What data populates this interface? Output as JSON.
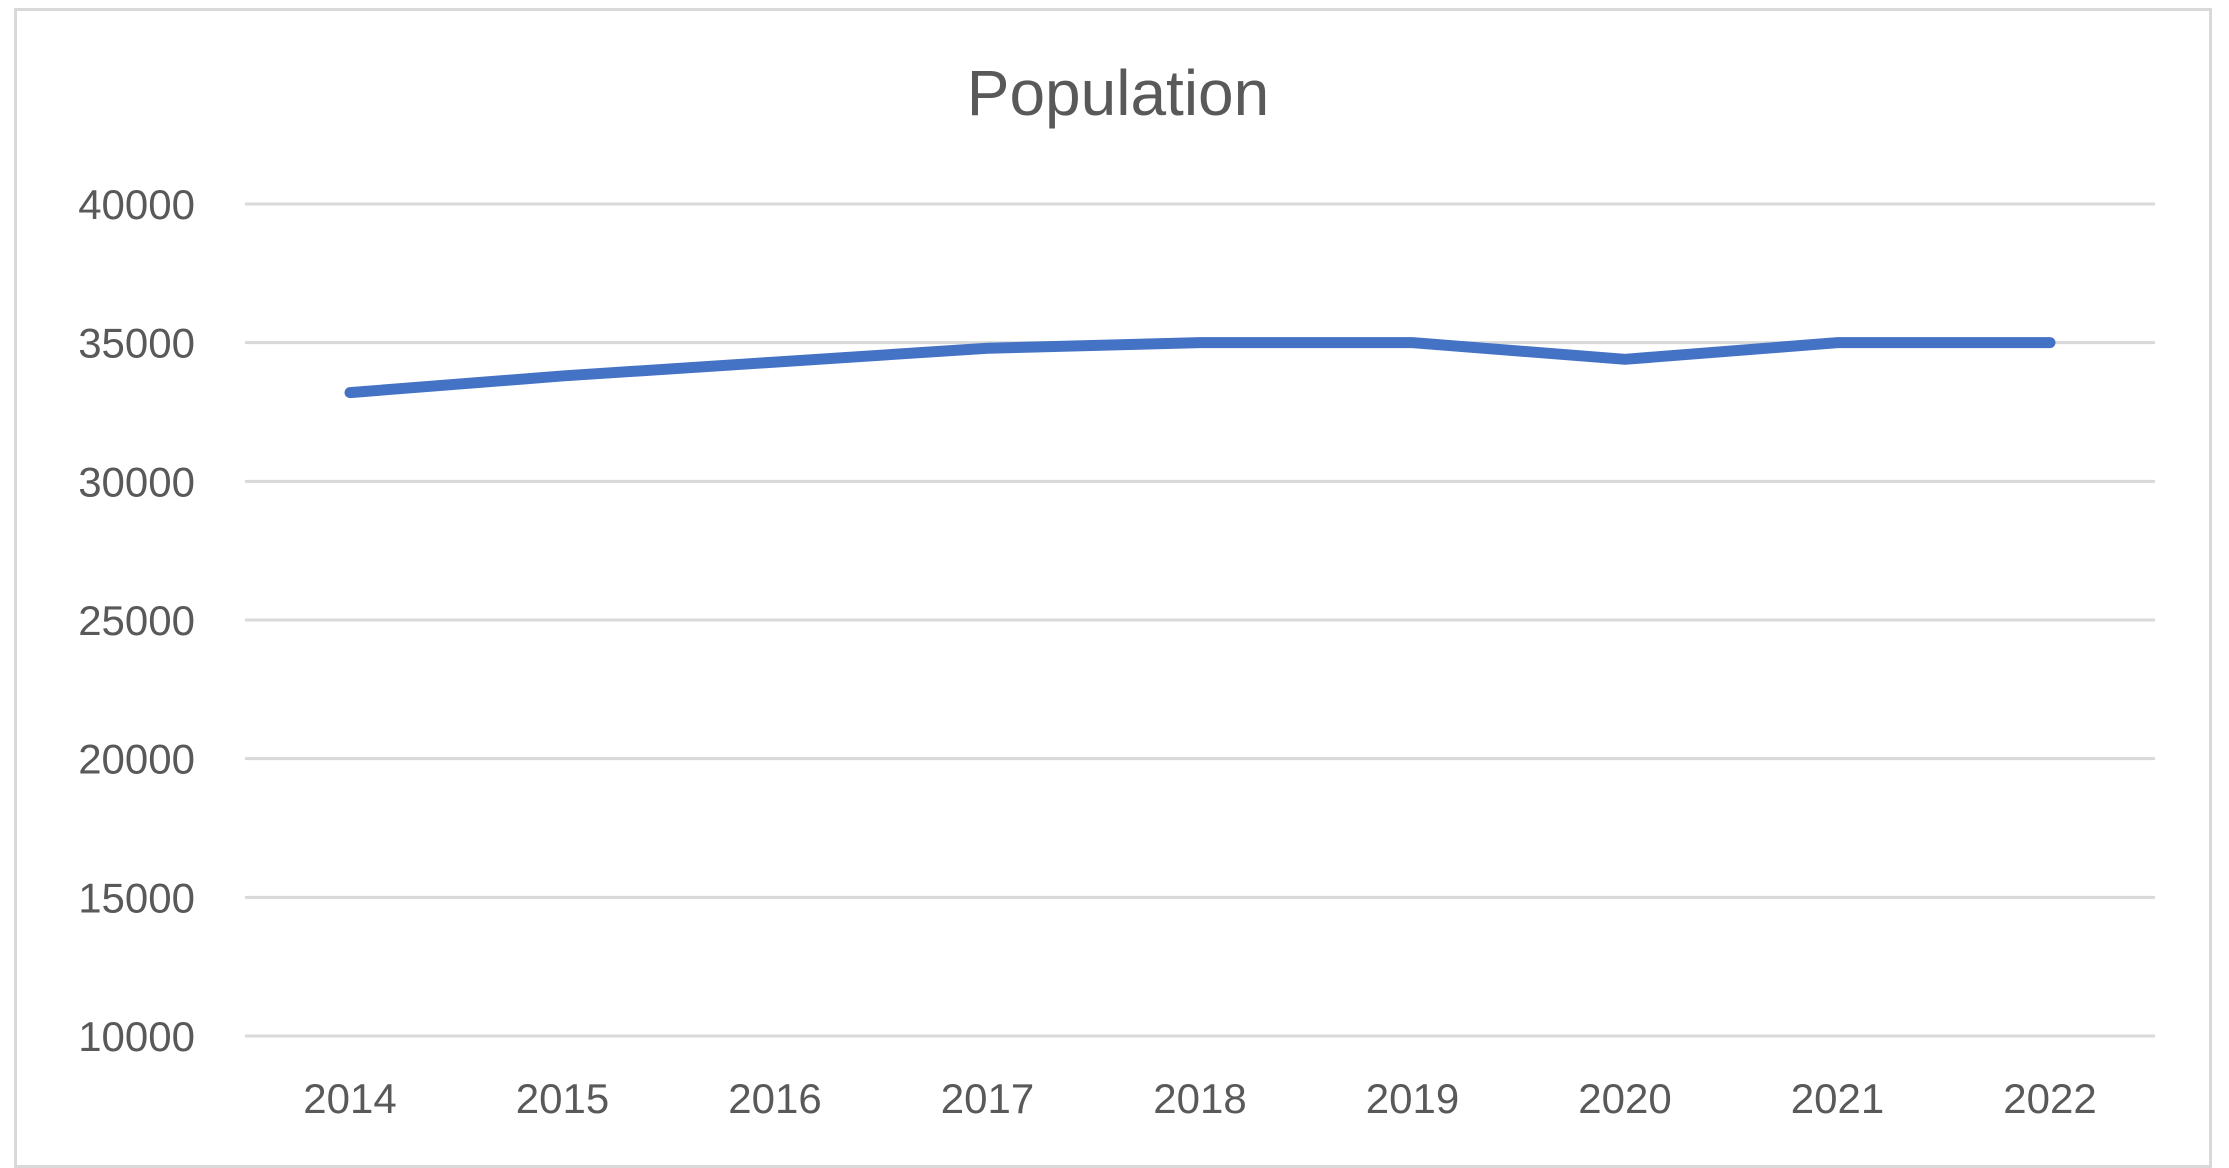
{
  "chart_data": {
    "type": "line",
    "title": "Population",
    "xlabel": "",
    "ylabel": "",
    "categories": [
      "2014",
      "2015",
      "2016",
      "2017",
      "2018",
      "2019",
      "2020",
      "2021",
      "2022"
    ],
    "series": [
      {
        "values": [
          33200,
          33800,
          34300,
          34800,
          35000,
          35000,
          34400,
          35000,
          35000
        ],
        "color": "#4472c4"
      }
    ],
    "ylim": [
      10000,
      40000
    ],
    "yticks": [
      10000,
      15000,
      20000,
      25000,
      30000,
      35000,
      40000
    ],
    "grid": true,
    "legend": "none"
  }
}
